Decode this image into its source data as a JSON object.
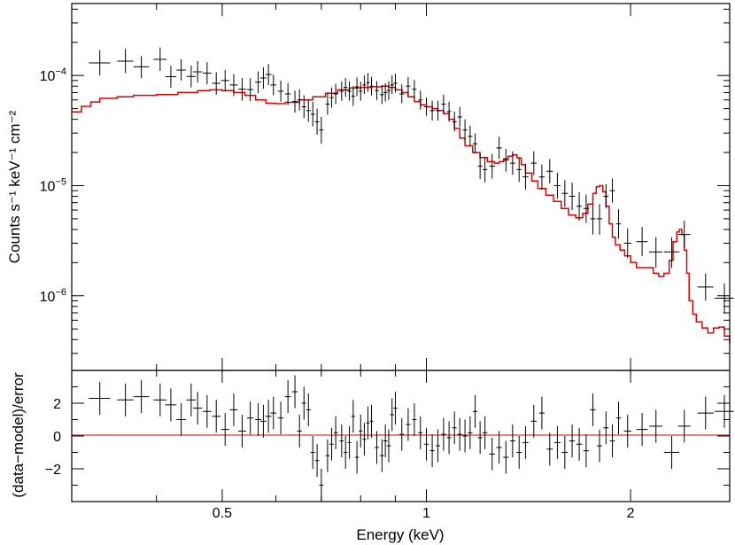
{
  "chart_data": [
    {
      "panel": "spectrum",
      "type": "scatter",
      "title": "",
      "xlabel": "",
      "ylabel": "Counts s⁻¹ keV⁻¹ cm⁻²",
      "xscale": "log",
      "yscale": "log",
      "xlim": [
        0.3,
        2.8
      ],
      "ylim": [
        2.1e-07,
        0.00045
      ],
      "y_ticks": [
        {
          "value": 0.0001,
          "mant": "10",
          "exp": "−4"
        },
        {
          "value": 1e-05,
          "mant": "10",
          "exp": "−5"
        },
        {
          "value": 1e-06,
          "mant": "10",
          "exp": "−6"
        }
      ],
      "series": [
        {
          "name": "data",
          "color": "#000000",
          "x": [
            0.33,
            0.36,
            0.38,
            0.405,
            0.42,
            0.435,
            0.45,
            0.46,
            0.475,
            0.49,
            0.505,
            0.52,
            0.535,
            0.55,
            0.565,
            0.575,
            0.585,
            0.595,
            0.61,
            0.625,
            0.64,
            0.65,
            0.66,
            0.67,
            0.68,
            0.69,
            0.7,
            0.715,
            0.725,
            0.735,
            0.75,
            0.76,
            0.77,
            0.78,
            0.79,
            0.8,
            0.81,
            0.82,
            0.83,
            0.845,
            0.86,
            0.87,
            0.88,
            0.89,
            0.9,
            0.92,
            0.94,
            0.96,
            0.98,
            1.0,
            1.02,
            1.04,
            1.06,
            1.08,
            1.1,
            1.12,
            1.14,
            1.16,
            1.18,
            1.2,
            1.22,
            1.25,
            1.28,
            1.31,
            1.34,
            1.37,
            1.4,
            1.44,
            1.48,
            1.52,
            1.56,
            1.6,
            1.64,
            1.68,
            1.72,
            1.76,
            1.8,
            1.84,
            1.88,
            1.92,
            1.98,
            2.08,
            2.18,
            2.3,
            2.4,
            2.58,
            2.75
          ],
          "xerr": [
            0.012,
            0.01,
            0.01,
            0.009,
            0.008,
            0.007,
            0.007,
            0.007,
            0.007,
            0.007,
            0.007,
            0.007,
            0.007,
            0.006,
            0.006,
            0.006,
            0.006,
            0.006,
            0.006,
            0.006,
            0.006,
            0.005,
            0.005,
            0.005,
            0.005,
            0.005,
            0.005,
            0.005,
            0.005,
            0.005,
            0.005,
            0.005,
            0.005,
            0.005,
            0.005,
            0.005,
            0.005,
            0.005,
            0.005,
            0.006,
            0.006,
            0.006,
            0.006,
            0.006,
            0.006,
            0.007,
            0.007,
            0.007,
            0.007,
            0.008,
            0.008,
            0.008,
            0.008,
            0.008,
            0.008,
            0.009,
            0.009,
            0.009,
            0.009,
            0.009,
            0.01,
            0.012,
            0.012,
            0.012,
            0.012,
            0.012,
            0.014,
            0.014,
            0.014,
            0.016,
            0.016,
            0.016,
            0.016,
            0.016,
            0.016,
            0.016,
            0.016,
            0.016,
            0.016,
            0.016,
            0.025,
            0.04,
            0.05,
            0.06,
            0.05,
            0.07,
            0.09
          ],
          "y": [
            0.00013,
            0.000135,
            0.00012,
            0.00014,
            9.75e-05,
            0.000112,
            9.8e-05,
            0.000108,
            0.000105,
            8.5e-05,
            9e-05,
            8.2e-05,
            7.5e-05,
            7.45e-05,
            8.7e-05,
            9.5e-05,
            0.000102,
            8.2e-05,
            7.2e-05,
            6.8e-05,
            5.8e-05,
            6e-05,
            5.2e-05,
            4.8e-05,
            4.45e-05,
            3.8e-05,
            3.2e-05,
            5.5e-05,
            6.3e-05,
            6.8e-05,
            7.2e-05,
            7.8e-05,
            7.2e-05,
            6.5e-05,
            7.9e-05,
            7.2e-05,
            8.2e-05,
            8.6e-05,
            8e-05,
            7.3e-05,
            6.7e-05,
            7e-05,
            7.3e-05,
            8.2e-05,
            8.5e-05,
            6.8e-05,
            8e-05,
            7.5e-05,
            6e-05,
            5.2e-05,
            4.8e-05,
            4.8e-05,
            5.5e-05,
            4.7e-05,
            3.8e-05,
            4.2e-05,
            3.2e-05,
            2.8e-05,
            2.4e-05,
            1.5e-05,
            1.4e-05,
            1.5e-05,
            2.2e-05,
            1.7e-05,
            1.6e-05,
            1.4e-05,
            1.2e-05,
            1.6e-05,
            1.2e-05,
            1.35e-05,
            1e-05,
            8.5e-06,
            8e-06,
            6.5e-06,
            6.2e-06,
            5e-06,
            5e-06,
            8e-06,
            9e-06,
            4.5e-06,
            3e-06,
            3.1e-06,
            2.5e-06,
            2.5e-06,
            3.6e-06,
            1.2e-06,
            9.5e-07
          ],
          "yerr_lo": [
            3e-05,
            3e-05,
            2.5e-05,
            3e-05,
            2e-05,
            2.2e-05,
            2e-05,
            2.2e-05,
            2.2e-05,
            1.8e-05,
            1.8e-05,
            1.7e-05,
            1.6e-05,
            1.6e-05,
            1.8e-05,
            1.9e-05,
            2e-05,
            1.6e-05,
            1.4e-05,
            1.4e-05,
            1.2e-05,
            1.2e-05,
            1.1e-05,
            1e-05,
            1e-05,
            9e-06,
            8e-06,
            1.1e-05,
            1.2e-05,
            1.3e-05,
            1.3e-05,
            1.4e-05,
            1.3e-05,
            1.2e-05,
            1.4e-05,
            1.3e-05,
            1.4e-05,
            1.5e-05,
            1.4e-05,
            1.3e-05,
            1.2e-05,
            1.2e-05,
            1.3e-05,
            1.4e-05,
            1.5e-05,
            1.2e-05,
            1.4e-05,
            1.3e-05,
            1.1e-05,
            9e-06,
            9e-06,
            9e-06,
            1e-05,
            9e-06,
            7e-06,
            8e-06,
            6e-06,
            5e-06,
            4.5e-06,
            3.5e-06,
            3.3e-06,
            3.4e-06,
            4.5e-06,
            3.6e-06,
            3.5e-06,
            3.2e-06,
            2.8e-06,
            3.5e-06,
            2.8e-06,
            3e-06,
            2.4e-06,
            2.1e-06,
            2e-06,
            1.7e-06,
            1.6e-06,
            1.4e-06,
            1.4e-06,
            1.8e-06,
            2e-06,
            1.2e-06,
            8e-07,
            8e-07,
            7e-07,
            7e-07,
            9e-07,
            3e-07,
            2.6e-07
          ],
          "yerr_hi": [
            4e-05,
            4e-05,
            3e-05,
            4e-05,
            2.5e-05,
            2.8e-05,
            2.5e-05,
            2.7e-05,
            2.7e-05,
            2.2e-05,
            2.2e-05,
            2.1e-05,
            2e-05,
            2e-05,
            2.2e-05,
            2.4e-05,
            2.5e-05,
            2e-05,
            1.8e-05,
            1.7e-05,
            1.5e-05,
            1.5e-05,
            1.4e-05,
            1.3e-05,
            1.3e-05,
            1.2e-05,
            1e-05,
            1.4e-05,
            1.5e-05,
            1.6e-05,
            1.6e-05,
            1.7e-05,
            1.6e-05,
            1.5e-05,
            1.7e-05,
            1.6e-05,
            1.8e-05,
            1.9e-05,
            1.7e-05,
            1.6e-05,
            1.5e-05,
            1.5e-05,
            1.6e-05,
            1.8e-05,
            1.9e-05,
            1.5e-05,
            1.7e-05,
            1.6e-05,
            1.3e-05,
            1.1e-05,
            1.1e-05,
            1.1e-05,
            1.2e-05,
            1.1e-05,
            9e-06,
            1e-05,
            8e-06,
            7e-06,
            5.8e-06,
            4.5e-06,
            4.2e-06,
            4.4e-06,
            5.8e-06,
            4.6e-06,
            4.5e-06,
            4.1e-06,
            3.6e-06,
            4.5e-06,
            3.6e-06,
            3.9e-06,
            3.1e-06,
            2.7e-06,
            2.6e-06,
            2.2e-06,
            2.1e-06,
            1.8e-06,
            1.8e-06,
            2.3e-06,
            2.6e-06,
            1.6e-06,
            1.1e-06,
            1.1e-06,
            9e-07,
            9e-07,
            1.2e-06,
            4e-07,
            3.5e-07
          ]
        },
        {
          "name": "model",
          "color": "#e00000",
          "x": [
            0.3,
            0.31,
            0.32,
            0.33,
            0.35,
            0.37,
            0.4,
            0.43,
            0.46,
            0.48,
            0.5,
            0.52,
            0.54,
            0.56,
            0.58,
            0.6,
            0.62,
            0.65,
            0.68,
            0.71,
            0.74,
            0.77,
            0.8,
            0.83,
            0.86,
            0.88,
            0.9,
            0.92,
            0.94,
            0.96,
            0.98,
            1.0,
            1.02,
            1.04,
            1.06,
            1.08,
            1.1,
            1.12,
            1.14,
            1.17,
            1.2,
            1.23,
            1.26,
            1.28,
            1.3,
            1.32,
            1.34,
            1.36,
            1.38,
            1.4,
            1.43,
            1.46,
            1.5,
            1.54,
            1.58,
            1.62,
            1.66,
            1.7,
            1.73,
            1.76,
            1.78,
            1.8,
            1.82,
            1.84,
            1.86,
            1.88,
            1.9,
            1.93,
            1.96,
            2.0,
            2.04,
            2.08,
            2.12,
            2.16,
            2.2,
            2.24,
            2.28,
            2.31,
            2.34,
            2.36,
            2.38,
            2.4,
            2.42,
            2.44,
            2.47,
            2.5,
            2.55,
            2.6,
            2.65,
            2.7,
            2.75,
            2.8
          ],
          "y": [
            4.68e-05,
            5.25e-05,
            5.75e-05,
            6.2e-05,
            6.4e-05,
            6.6e-05,
            6.7e-05,
            7e-05,
            7.3e-05,
            7.4e-05,
            7.3e-05,
            7e-05,
            6.6e-05,
            6e-05,
            5.6e-05,
            5.55e-05,
            5.7e-05,
            6e-05,
            6.4e-05,
            6.9e-05,
            7.4e-05,
            7.7e-05,
            7.8e-05,
            7.9e-05,
            8e-05,
            7.8e-05,
            7.4e-05,
            7e-05,
            6.4e-05,
            5.8e-05,
            5.4e-05,
            5.2e-05,
            5e-05,
            4.8e-05,
            4.5e-05,
            4e-05,
            3.3e-05,
            2.7e-05,
            2.3e-05,
            2e-05,
            1.8e-05,
            1.65e-05,
            1.6e-05,
            1.65e-05,
            1.75e-05,
            1.85e-05,
            1.9e-05,
            1.78e-05,
            1.55e-05,
            1.3e-05,
            1.1e-05,
            9.4e-06,
            8.2e-06,
            7.2e-06,
            6.2e-06,
            5.4e-06,
            5.1e-06,
            5.6e-06,
            6.8e-06,
            8.5e-06,
            9.8e-06,
            1e-05,
            8.8e-06,
            6.5e-06,
            4.5e-06,
            3.4e-06,
            2.9e-06,
            2.6e-06,
            2.3e-06,
            2e-06,
            1.8e-06,
            1.8e-06,
            1.8e-06,
            1.6e-06,
            1.5e-06,
            1.6e-06,
            2.1e-06,
            3.1e-06,
            3.8e-06,
            4e-06,
            3.6e-06,
            2.6e-06,
            1.6e-06,
            9e-07,
            6.8e-07,
            5.8e-07,
            5.1e-07,
            4.6e-07,
            5.1e-07,
            5.2e-07,
            4.3e-07,
            3.7e-07
          ]
        }
      ]
    },
    {
      "panel": "residuals",
      "type": "scatter",
      "title": "",
      "xlabel": "Energy (keV)",
      "ylabel": "(data−model)/error",
      "xscale": "log",
      "yscale": "linear",
      "xlim": [
        0.3,
        2.8
      ],
      "ylim": [
        -4,
        4
      ],
      "y_ticks": [
        2,
        0,
        -2
      ],
      "y_tick_labels": [
        "2",
        "0",
        "−2"
      ],
      "x_ticks": [
        0.5,
        1,
        2
      ],
      "x_tick_labels": [
        "0.5",
        "1",
        "2"
      ],
      "zero_line_color": "#e00000",
      "series": [
        {
          "name": "residuals",
          "color": "#000000",
          "yerr": 1,
          "x": [
            0.33,
            0.36,
            0.38,
            0.405,
            0.42,
            0.435,
            0.45,
            0.46,
            0.475,
            0.49,
            0.505,
            0.52,
            0.535,
            0.55,
            0.565,
            0.575,
            0.585,
            0.595,
            0.61,
            0.625,
            0.64,
            0.65,
            0.66,
            0.67,
            0.68,
            0.69,
            0.7,
            0.715,
            0.725,
            0.735,
            0.75,
            0.76,
            0.77,
            0.78,
            0.79,
            0.8,
            0.81,
            0.82,
            0.83,
            0.845,
            0.86,
            0.87,
            0.88,
            0.89,
            0.9,
            0.92,
            0.94,
            0.96,
            0.98,
            1.0,
            1.02,
            1.04,
            1.06,
            1.08,
            1.1,
            1.12,
            1.14,
            1.16,
            1.18,
            1.2,
            1.22,
            1.25,
            1.28,
            1.31,
            1.34,
            1.37,
            1.4,
            1.44,
            1.48,
            1.52,
            1.56,
            1.6,
            1.64,
            1.68,
            1.72,
            1.76,
            1.8,
            1.84,
            1.88,
            1.92,
            1.98,
            2.08,
            2.18,
            2.3,
            2.4,
            2.58,
            2.75
          ],
          "xerr": [
            0.012,
            0.01,
            0.01,
            0.009,
            0.008,
            0.007,
            0.007,
            0.007,
            0.007,
            0.007,
            0.007,
            0.007,
            0.007,
            0.006,
            0.006,
            0.006,
            0.006,
            0.006,
            0.006,
            0.006,
            0.006,
            0.005,
            0.005,
            0.005,
            0.005,
            0.005,
            0.005,
            0.005,
            0.005,
            0.005,
            0.005,
            0.005,
            0.005,
            0.005,
            0.005,
            0.005,
            0.005,
            0.005,
            0.005,
            0.006,
            0.006,
            0.006,
            0.006,
            0.006,
            0.006,
            0.007,
            0.007,
            0.007,
            0.007,
            0.008,
            0.008,
            0.008,
            0.008,
            0.008,
            0.008,
            0.009,
            0.009,
            0.009,
            0.009,
            0.009,
            0.01,
            0.012,
            0.012,
            0.012,
            0.012,
            0.012,
            0.014,
            0.014,
            0.014,
            0.016,
            0.016,
            0.016,
            0.016,
            0.016,
            0.016,
            0.016,
            0.016,
            0.016,
            0.016,
            0.016,
            0.025,
            0.04,
            0.05,
            0.06,
            0.05,
            0.07,
            0.09
          ],
          "y": [
            2.3,
            2.2,
            2.4,
            2.2,
            1.9,
            1.0,
            2.2,
            1.7,
            1.5,
            1.2,
            0.4,
            1.6,
            0.3,
            1.1,
            1.0,
            0.9,
            1.2,
            1.4,
            1.1,
            2.4,
            2.7,
            0.3,
            2.0,
            1.6,
            -1.0,
            -1.5,
            -3.0,
            -1.2,
            -0.5,
            0.2,
            -0.3,
            -1.0,
            -0.4,
            1.2,
            -1.3,
            0.3,
            -0.2,
            0.8,
            0.9,
            -0.7,
            -1.2,
            -0.3,
            -0.6,
            1.3,
            1.7,
            0.1,
            0.7,
            1.0,
            0.2,
            -0.5,
            -0.9,
            -0.6,
            0.1,
            -0.1,
            0.5,
            0.1,
            0.0,
            0.2,
            1.5,
            -0.1,
            0.2,
            -1.1,
            -0.7,
            -1.3,
            -0.3,
            -1.0,
            -0.4,
            0.9,
            1.4,
            -0.8,
            -0.4,
            -1.0,
            -0.3,
            -0.5,
            -0.9,
            1.6,
            -0.6,
            0.5,
            -0.3,
            1.1,
            0.3,
            0.4,
            0.6,
            -1.0,
            0.6,
            1.4,
            1.5
          ]
        }
      ]
    }
  ]
}
